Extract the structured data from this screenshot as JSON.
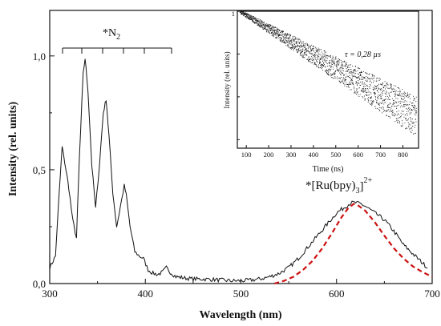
{
  "chart_data": [
    {
      "type": "line",
      "xlabel": "Wavelength (nm)",
      "ylabel": "Intensity (rel. units)",
      "xlim": [
        300,
        700
      ],
      "ylim": [
        0,
        1.2
      ],
      "x_ticks": [
        "300",
        "400",
        "500",
        "600",
        "700"
      ],
      "y_ticks": [
        "0,0",
        "0,5",
        "1,0"
      ],
      "grid": false,
      "series": [
        {
          "color": "#111111",
          "style": "solid",
          "points": [
            [
              300,
              0.07
            ],
            [
              306,
              0.12
            ],
            [
              310,
              0.4
            ],
            [
              313,
              0.6
            ],
            [
              317,
              0.5
            ],
            [
              320,
              0.42
            ],
            [
              324,
              0.28
            ],
            [
              328,
              0.2
            ],
            [
              331,
              0.55
            ],
            [
              335,
              0.92
            ],
            [
              337,
              0.99
            ],
            [
              340,
              0.85
            ],
            [
              344,
              0.52
            ],
            [
              348,
              0.33
            ],
            [
              352,
              0.52
            ],
            [
              356,
              0.75
            ],
            [
              359,
              0.81
            ],
            [
              362,
              0.65
            ],
            [
              366,
              0.4
            ],
            [
              370,
              0.25
            ],
            [
              374,
              0.34
            ],
            [
              378,
              0.43
            ],
            [
              380,
              0.39
            ],
            [
              384,
              0.25
            ],
            [
              389,
              0.14
            ],
            [
              394,
              0.12
            ],
            [
              398,
              0.11
            ],
            [
              403,
              0.06
            ],
            [
              408,
              0.045
            ],
            [
              413,
              0.04
            ],
            [
              418,
              0.05
            ],
            [
              422,
              0.07
            ],
            [
              426,
              0.05
            ],
            [
              432,
              0.03
            ],
            [
              440,
              0.025
            ],
            [
              450,
              0.02
            ],
            [
              460,
              0.02
            ],
            [
              470,
              0.018
            ],
            [
              480,
              0.015
            ],
            [
              490,
              0.012
            ],
            [
              500,
              0.012
            ],
            [
              510,
              0.015
            ],
            [
              520,
              0.02
            ],
            [
              530,
              0.03
            ],
            [
              540,
              0.045
            ],
            [
              550,
              0.07
            ],
            [
              560,
              0.11
            ],
            [
              570,
              0.16
            ],
            [
              580,
              0.21
            ],
            [
              590,
              0.26
            ],
            [
              600,
              0.31
            ],
            [
              610,
              0.34
            ],
            [
              615,
              0.355
            ],
            [
              620,
              0.355
            ],
            [
              625,
              0.35
            ],
            [
              630,
              0.34
            ],
            [
              640,
              0.31
            ],
            [
              650,
              0.28
            ],
            [
              660,
              0.23
            ],
            [
              670,
              0.17
            ],
            [
              680,
              0.13
            ],
            [
              690,
              0.09
            ],
            [
              695,
              0.07
            ]
          ]
        },
        {
          "color": "#cc1111",
          "style": "dashed",
          "points": [
            [
              535,
              0.0
            ],
            [
              545,
              0.012
            ],
            [
              555,
              0.03
            ],
            [
              565,
              0.06
            ],
            [
              575,
              0.1
            ],
            [
              585,
              0.155
            ],
            [
              595,
              0.22
            ],
            [
              605,
              0.29
            ],
            [
              612,
              0.33
            ],
            [
              618,
              0.35
            ],
            [
              622,
              0.345
            ],
            [
              630,
              0.32
            ],
            [
              640,
              0.27
            ],
            [
              650,
              0.21
            ],
            [
              660,
              0.155
            ],
            [
              670,
              0.11
            ],
            [
              680,
              0.075
            ],
            [
              690,
              0.05
            ],
            [
              700,
              0.03
            ]
          ]
        }
      ]
    },
    {
      "type": "scatter",
      "xlabel": "Time (ns)",
      "ylabel": "Intensity (rel. units)",
      "xlim": [
        60,
        870
      ],
      "ylim_log": [
        -1.6,
        0
      ],
      "x_ticks": [
        "100",
        "200",
        "300",
        "400",
        "500",
        "600",
        "700",
        "800"
      ],
      "y_ticks": [
        "1"
      ],
      "grid": false,
      "series": [
        {
          "color": "#111111",
          "start_intensity": 1.0,
          "slope_log10_per_ns": -0.00155,
          "start_time": 70,
          "end_time": 860
        }
      ]
    }
  ],
  "annotations": {
    "n2_label": "*N",
    "n2_sub": "2",
    "ru_label": "*[Ru(bpy)",
    "ru_sub": "3",
    "ru_sup": "2+",
    "tau_label": "τ = 0,28 µs"
  }
}
